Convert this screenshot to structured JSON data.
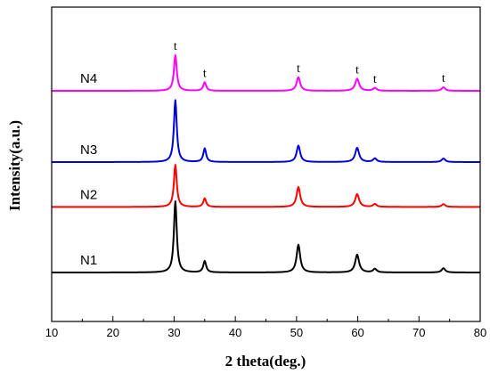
{
  "chart_data": {
    "type": "line",
    "xlabel": "2 theta(deg.)",
    "ylabel": "Intensity(a.u.)",
    "xlim": [
      10,
      80
    ],
    "x_ticks": [
      10,
      20,
      30,
      40,
      50,
      60,
      70,
      80
    ],
    "y_ticks_shown": false,
    "grid": false,
    "legend": "none",
    "peaks": [
      {
        "x": 30.2,
        "width": 0.28,
        "label": "t"
      },
      {
        "x": 35.0,
        "width": 0.28,
        "label": "t"
      },
      {
        "x": 50.3,
        "width": 0.35,
        "label": "t"
      },
      {
        "x": 59.9,
        "width": 0.38,
        "label": "t"
      },
      {
        "x": 62.8,
        "width": 0.35,
        "label": "t"
      },
      {
        "x": 74.0,
        "width": 0.35,
        "label": "t"
      }
    ],
    "series": [
      {
        "name": "N1",
        "color": "#000000",
        "baseline": 0.0,
        "heights": [
          1.0,
          0.16,
          0.39,
          0.25,
          0.05,
          0.06
        ]
      },
      {
        "name": "N2",
        "color": "#ff0000",
        "baseline": 0.92,
        "heights": [
          0.59,
          0.12,
          0.28,
          0.18,
          0.04,
          0.04
        ]
      },
      {
        "name": "N3",
        "color": "#0000dd",
        "baseline": 1.55,
        "heights": [
          0.87,
          0.19,
          0.23,
          0.2,
          0.05,
          0.05
        ]
      },
      {
        "name": "N4",
        "color": "#ff00ff",
        "baseline": 2.55,
        "heights": [
          0.5,
          0.12,
          0.19,
          0.17,
          0.04,
          0.05
        ]
      }
    ],
    "ylim": [
      -0.3,
      3.45
    ]
  }
}
